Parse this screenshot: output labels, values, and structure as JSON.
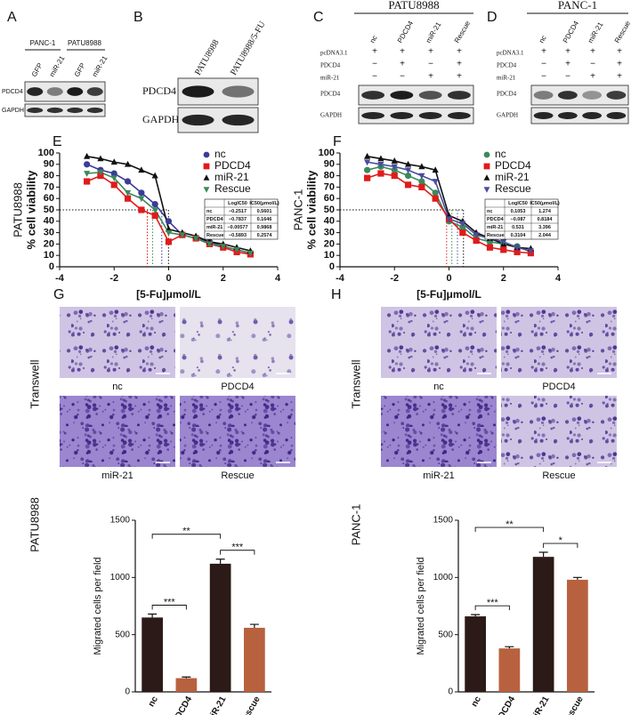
{
  "panels": {
    "A": {
      "label": "A",
      "groups": [
        "PANC-1",
        "PATU8988"
      ],
      "lanes": [
        "GFP",
        "miR-21",
        "GFP",
        "miR-21"
      ],
      "rows": [
        "PDCD4",
        "GAPDH"
      ]
    },
    "B": {
      "label": "B",
      "lanes": [
        "PATU8988",
        "PATU8988/5-FU"
      ],
      "rows": [
        "PDCD4",
        "GAPDH"
      ]
    },
    "C": {
      "label": "C",
      "title": "PATU8988",
      "lanes": [
        "nc",
        "PDCD4",
        "miR-21",
        "Rescue"
      ],
      "conditions": [
        {
          "name": "pcDNA3.1",
          "signs": [
            "+",
            "+",
            "+",
            "+"
          ]
        },
        {
          "name": "PDCD4",
          "signs": [
            "−",
            "+",
            "−",
            "+"
          ]
        },
        {
          "name": "miR-21",
          "signs": [
            "−",
            "−",
            "+",
            "+"
          ]
        }
      ],
      "rows": [
        "PDCD4",
        "GAPDH"
      ]
    },
    "D": {
      "label": "D",
      "title": "PANC-1",
      "lanes": [
        "nc",
        "PDCD4",
        "miR-21",
        "Rescue"
      ],
      "conditions": [
        {
          "name": "pcDNA3.1",
          "signs": [
            "+",
            "+",
            "+",
            "+"
          ]
        },
        {
          "name": "PDCD4",
          "signs": [
            "−",
            "+",
            "−",
            "+"
          ]
        },
        {
          "name": "miR-21",
          "signs": [
            "−",
            "−",
            "+",
            "+"
          ]
        }
      ],
      "rows": [
        "PDCD4",
        "GAPDH"
      ]
    },
    "G": {
      "label": "G",
      "side_label": "Transwell",
      "cell_line": "PATU8988",
      "images": [
        "nc",
        "PDCD4",
        "miR-21",
        "Rescue"
      ]
    },
    "H": {
      "label": "H",
      "side_label": "Transwell",
      "cell_line": "PANC-1",
      "images": [
        "nc",
        "PDCD4",
        "miR-21",
        "Rescue"
      ]
    }
  },
  "chart_data": [
    {
      "type": "scatter",
      "label": "E",
      "cell_line": "PATU8988",
      "ylabel": "% cell viability",
      "xlabel": "[5-Fu]μmol/L",
      "x": [
        -3,
        -2.5,
        -2,
        -1.5,
        -1,
        -0.5,
        0,
        0.5,
        1,
        1.5,
        2,
        2.5,
        3
      ],
      "series": [
        {
          "name": "nc",
          "color": "#3b3b9b",
          "marker": "circle",
          "values": [
            90,
            85,
            82,
            75,
            65,
            55,
            40,
            28,
            25,
            22,
            18,
            15,
            12
          ]
        },
        {
          "name": "PDCD4",
          "color": "#e01b1b",
          "marker": "square",
          "values": [
            75,
            80,
            72,
            60,
            50,
            45,
            22,
            28,
            25,
            20,
            17,
            13,
            11
          ]
        },
        {
          "name": "miR-21",
          "color": "#111111",
          "marker": "triangle",
          "values": [
            97,
            95,
            92,
            90,
            85,
            80,
            33,
            30,
            27,
            22,
            20,
            17,
            14
          ]
        },
        {
          "name": "Rescue",
          "color": "#3a8a5a",
          "marker": "triangle-down",
          "values": [
            82,
            83,
            78,
            65,
            60,
            50,
            30,
            28,
            25,
            20,
            18,
            15,
            12
          ]
        }
      ],
      "xlim": [
        -4,
        4
      ],
      "xticks": [
        -4,
        -2,
        0,
        2,
        4
      ],
      "ylim": [
        0,
        100
      ],
      "yticks": [
        0,
        10,
        20,
        30,
        40,
        50,
        60,
        70,
        80,
        90,
        100
      ],
      "reference_y": 50,
      "table": {
        "headers": [
          "LogIC50",
          "IC50(μmol/L)"
        ],
        "log_ic50": [
          -0.2517,
          -0.7837,
          -0.00577,
          -0.5893
        ],
        "log_ic50_labels": [
          "−0.2517",
          "−0.7837",
          "−0.00577",
          "−0.5893"
        ],
        "ic50": [
          "0.5601",
          "0.1646",
          "0.9868",
          "0.2574"
        ]
      }
    },
    {
      "type": "scatter",
      "label": "F",
      "cell_line": "PANC-1",
      "ylabel": "% cell viability",
      "xlabel": "[5-Fu]μmol/L",
      "x": [
        -3,
        -2.5,
        -2,
        -1.5,
        -1,
        -0.5,
        0,
        0.5,
        1,
        1.5,
        2,
        2.5,
        3
      ],
      "series": [
        {
          "name": "nc",
          "color": "#3a8a5a",
          "marker": "circle",
          "values": [
            85,
            88,
            85,
            80,
            75,
            65,
            40,
            35,
            25,
            22,
            20,
            18,
            13
          ]
        },
        {
          "name": "PDCD4",
          "color": "#e01b1b",
          "marker": "square",
          "values": [
            78,
            82,
            80,
            72,
            70,
            60,
            42,
            30,
            23,
            17,
            15,
            13,
            12
          ]
        },
        {
          "name": "miR-21",
          "color": "#111111",
          "marker": "triangle",
          "values": [
            97,
            95,
            93,
            90,
            88,
            85,
            45,
            40,
            30,
            25,
            20,
            17,
            16
          ]
        },
        {
          "name": "Rescue",
          "color": "#4b4b9e",
          "marker": "triangle-down",
          "values": [
            92,
            90,
            88,
            85,
            80,
            75,
            42,
            38,
            28,
            25,
            22,
            17,
            14
          ]
        }
      ],
      "xlim": [
        -4,
        4
      ],
      "xticks": [
        -4,
        -2,
        0,
        2,
        4
      ],
      "ylim": [
        0,
        100
      ],
      "yticks": [
        0,
        10,
        20,
        30,
        40,
        50,
        60,
        70,
        80,
        90,
        100
      ],
      "reference_y": 50,
      "table": {
        "headers": [
          "LogIC50",
          "IC50(μmol/L)"
        ],
        "log_ic50": [
          0.1053,
          -0.087,
          0.531,
          0.3104
        ],
        "log_ic50_labels": [
          "0.1053",
          "−0.087",
          "0.531",
          "0.3104"
        ],
        "ic50": [
          "1.274",
          "0.8184",
          "3.396",
          "2.044"
        ]
      }
    },
    {
      "type": "bar",
      "ylabel": "Migrated cells per field",
      "categories": [
        "nc",
        "PDCD4",
        "miR-21",
        "Rescue"
      ],
      "values": [
        650,
        120,
        1120,
        560
      ],
      "errors": [
        30,
        10,
        40,
        30
      ],
      "colors": [
        "#2b1a17",
        "#b8613f",
        "#2b1a17",
        "#b8613f"
      ],
      "ylim": [
        0,
        1500
      ],
      "yticks": [
        0,
        500,
        1000,
        1500
      ],
      "annotations": [
        {
          "text": "***",
          "between": [
            "nc",
            "PDCD4"
          ]
        },
        {
          "text": "***",
          "between": [
            "miR-21",
            "Rescue"
          ]
        },
        {
          "text": "**",
          "between": [
            "nc",
            "miR-21"
          ]
        }
      ]
    },
    {
      "type": "bar",
      "ylabel": "Migrated cells per field",
      "categories": [
        "nc",
        "PDCD4",
        "miR-21",
        "Rescue"
      ],
      "values": [
        660,
        380,
        1180,
        980
      ],
      "errors": [
        15,
        15,
        40,
        20
      ],
      "colors": [
        "#2b1a17",
        "#b8613f",
        "#2b1a17",
        "#b8613f"
      ],
      "ylim": [
        0,
        1500
      ],
      "yticks": [
        0,
        500,
        1000,
        1500
      ],
      "annotations": [
        {
          "text": "***",
          "between": [
            "nc",
            "PDCD4"
          ]
        },
        {
          "text": "*",
          "between": [
            "miR-21",
            "Rescue"
          ]
        },
        {
          "text": "**",
          "between": [
            "nc",
            "miR-21"
          ]
        }
      ]
    }
  ]
}
